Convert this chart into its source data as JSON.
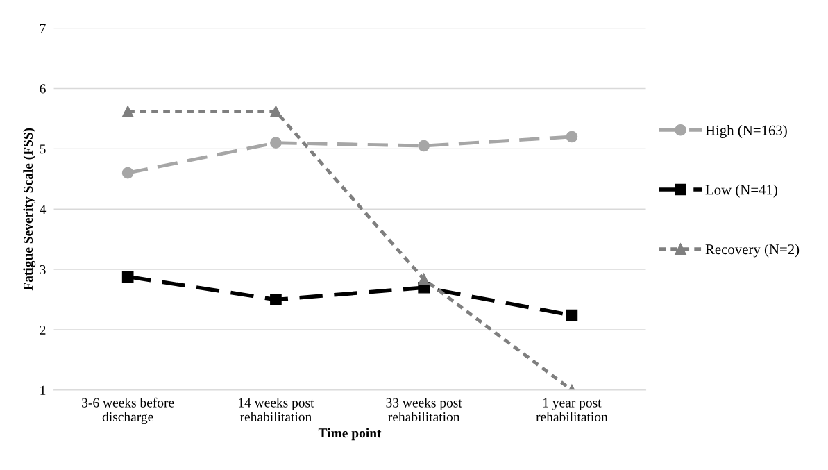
{
  "chart_data": {
    "type": "line",
    "xlabel": "Time point",
    "ylabel": "Fatigue Severity Scale (FSS)",
    "categories": [
      "3-6 weeks before\ndischarge",
      "14 weeks post\nrehabilitation",
      "33 weeks post\nrehabilitation",
      "1 year post\nrehabilitation"
    ],
    "series": [
      {
        "name": "High (N=163)",
        "color": "#a6a6a6",
        "marker": "circle",
        "line_style": "dashed",
        "values": [
          4.6,
          5.1,
          5.05,
          5.2
        ]
      },
      {
        "name": "Low (N=41)",
        "color": "#000000",
        "marker": "square",
        "line_style": "dashed",
        "values": [
          2.88,
          2.5,
          2.7,
          2.24
        ]
      },
      {
        "name": "Recovery (N=2)",
        "color": "#7f7f7f",
        "marker": "triangle",
        "line_style": "dotted",
        "values": [
          5.62,
          5.62,
          2.84,
          1.0
        ]
      }
    ],
    "ylim": [
      1,
      7
    ],
    "yticks": [
      1,
      2,
      3,
      4,
      5,
      6,
      7
    ],
    "grid": "y",
    "legend": "right"
  }
}
